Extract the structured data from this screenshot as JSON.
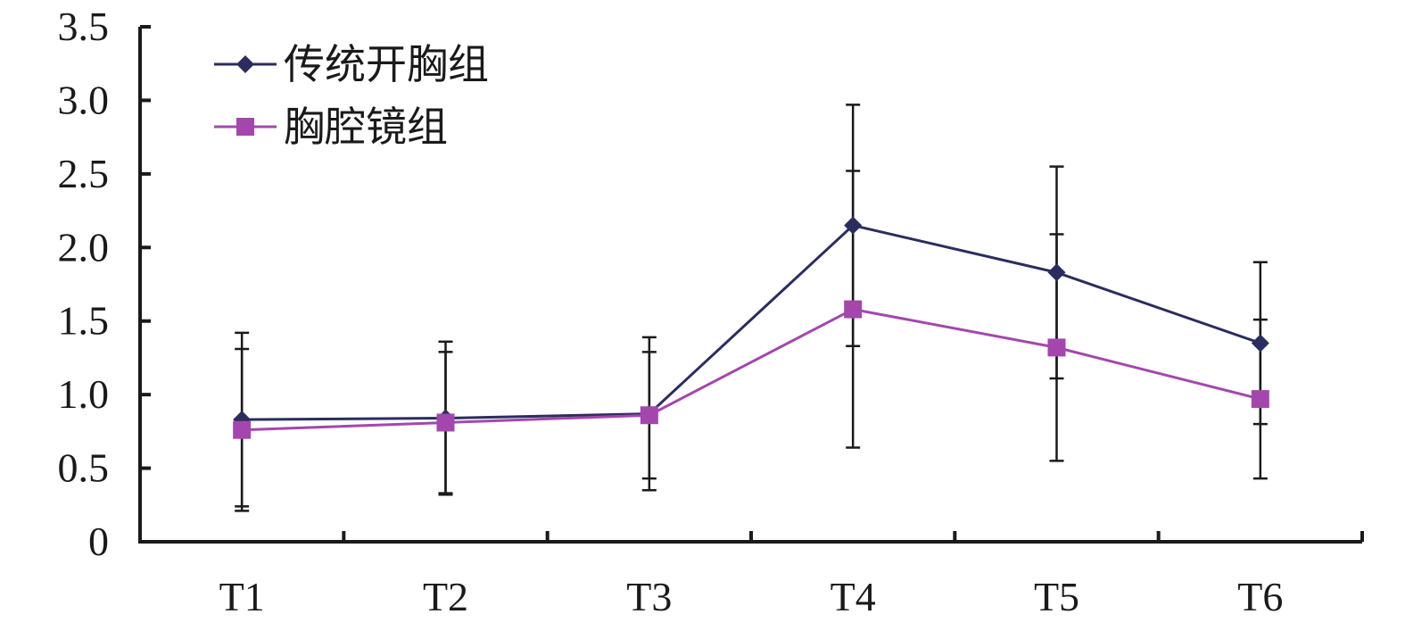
{
  "chart_data": {
    "type": "line",
    "categories": [
      "T1",
      "T2",
      "T3",
      "T4",
      "T5",
      "T6"
    ],
    "ylim": [
      0,
      3.5
    ],
    "yticks": [
      "0",
      "0.5",
      "1.0",
      "1.5",
      "2.0",
      "2.5",
      "3.0",
      "3.5"
    ],
    "grid": false,
    "legend_position": "top-left",
    "series": [
      {
        "name": "传统开胸组",
        "color": "#2b2d5e",
        "marker": "diamond",
        "values": [
          0.83,
          0.84,
          0.87,
          2.15,
          1.83,
          1.35
        ],
        "error": [
          0.59,
          0.52,
          0.52,
          0.82,
          0.72,
          0.55
        ]
      },
      {
        "name": "胸腔镜组",
        "color": "#a347ad",
        "marker": "square",
        "values": [
          0.76,
          0.81,
          0.86,
          1.58,
          1.32,
          0.97
        ],
        "error": [
          0.55,
          0.48,
          0.43,
          0.94,
          0.77,
          0.54
        ]
      }
    ]
  }
}
